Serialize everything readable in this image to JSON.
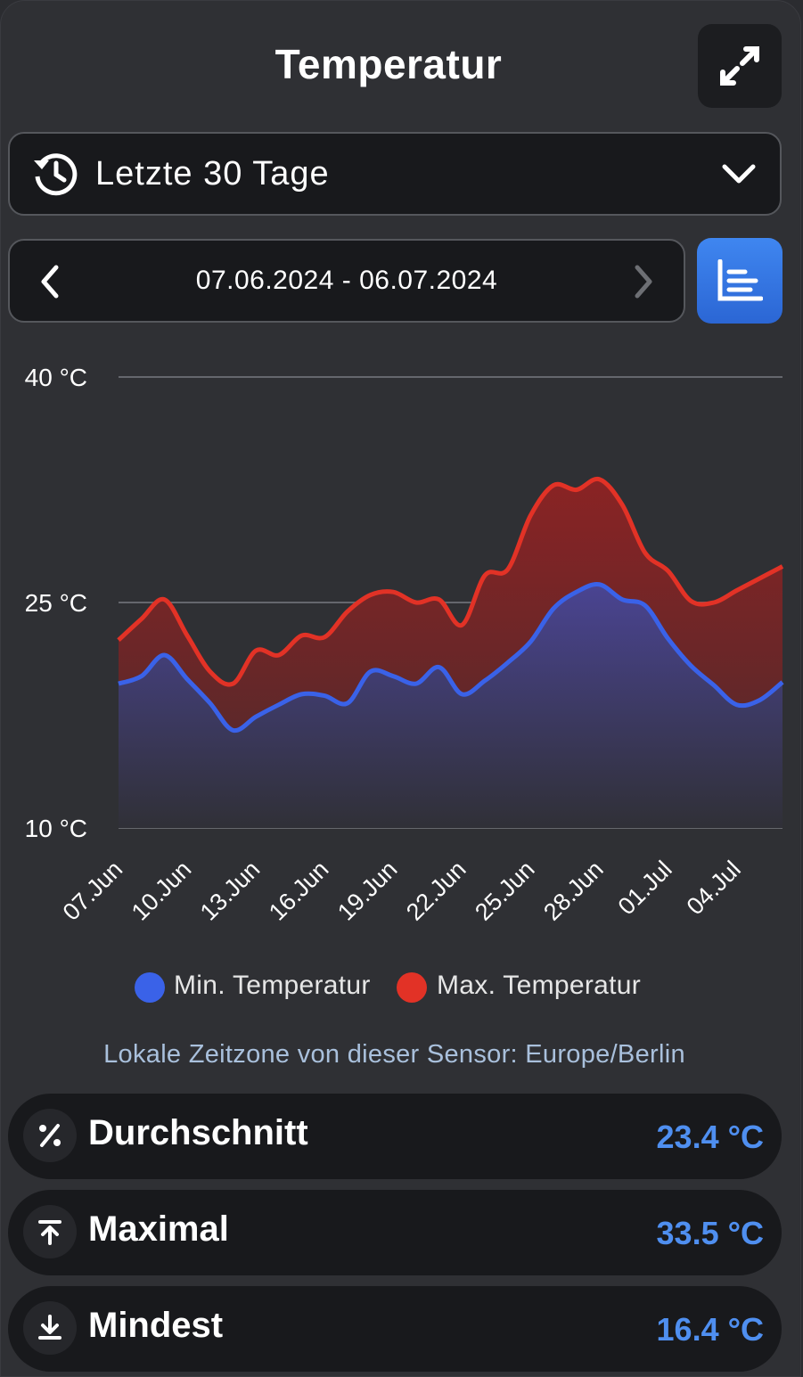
{
  "header": {
    "title": "Temperatur"
  },
  "range_select": {
    "label": "Letzte 30 Tage"
  },
  "date_nav": {
    "range": "07.06.2024 - 06.07.2024"
  },
  "legend": {
    "min_label": "Min. Temperatur",
    "max_label": "Max. Temperatur"
  },
  "timezone_note": "Lokale Zeitzone von dieser Sensor: Europe/Berlin",
  "stats": [
    {
      "label": "Durchschnitt",
      "value": "23.4 °C",
      "icon": "percent-icon"
    },
    {
      "label": "Maximal",
      "value": "33.5 °C",
      "icon": "arrow-up-to-line-icon"
    },
    {
      "label": "Mindest",
      "value": "16.4 °C",
      "icon": "arrow-down-to-line-icon"
    }
  ],
  "colors": {
    "min": "#3a62e8",
    "max": "#e23226",
    "accent": "#4f8ff0"
  },
  "chart_data": {
    "type": "area",
    "x": [
      "07.Jun",
      "08.Jun",
      "09.Jun",
      "10.Jun",
      "11.Jun",
      "12.Jun",
      "13.Jun",
      "14.Jun",
      "15.Jun",
      "16.Jun",
      "17.Jun",
      "18.Jun",
      "19.Jun",
      "20.Jun",
      "21.Jun",
      "22.Jun",
      "23.Jun",
      "24.Jun",
      "25.Jun",
      "26.Jun",
      "27.Jun",
      "28.Jun",
      "29.Jun",
      "30.Jun",
      "01.Jul",
      "02.Jul",
      "03.Jul",
      "04.Jul",
      "05.Jul",
      "06.Jul"
    ],
    "x_tick_labels": [
      "07.Jun",
      "10.Jun",
      "13.Jun",
      "16.Jun",
      "19.Jun",
      "22.Jun",
      "25.Jun",
      "28.Jun",
      "01.Jul",
      "04.Jul"
    ],
    "series": [
      {
        "name": "Min. Temperatur",
        "color": "#3a62e8",
        "values": [
          19.6,
          20.1,
          21.5,
          19.9,
          18.3,
          16.5,
          17.4,
          18.2,
          18.9,
          18.8,
          18.3,
          20.4,
          20.1,
          19.6,
          20.7,
          18.9,
          19.8,
          21.0,
          22.4,
          24.6,
          25.7,
          26.2,
          25.2,
          24.8,
          22.6,
          20.8,
          19.5,
          18.2,
          18.5,
          19.7
        ]
      },
      {
        "name": "Max. Temperatur",
        "color": "#e23226",
        "values": [
          22.5,
          23.9,
          25.2,
          22.8,
          20.4,
          19.6,
          21.8,
          21.5,
          22.8,
          22.7,
          24.4,
          25.5,
          25.7,
          25.0,
          25.2,
          23.5,
          26.8,
          27.2,
          30.8,
          32.8,
          32.5,
          33.2,
          31.5,
          28.3,
          27.1,
          25.1,
          25.0,
          25.8,
          26.6,
          27.4
        ]
      }
    ],
    "yticks": [
      "10 °C",
      "25 °C",
      "40 °C"
    ],
    "ylim": [
      10,
      40
    ],
    "grid": true,
    "legend_position": "bottom"
  }
}
